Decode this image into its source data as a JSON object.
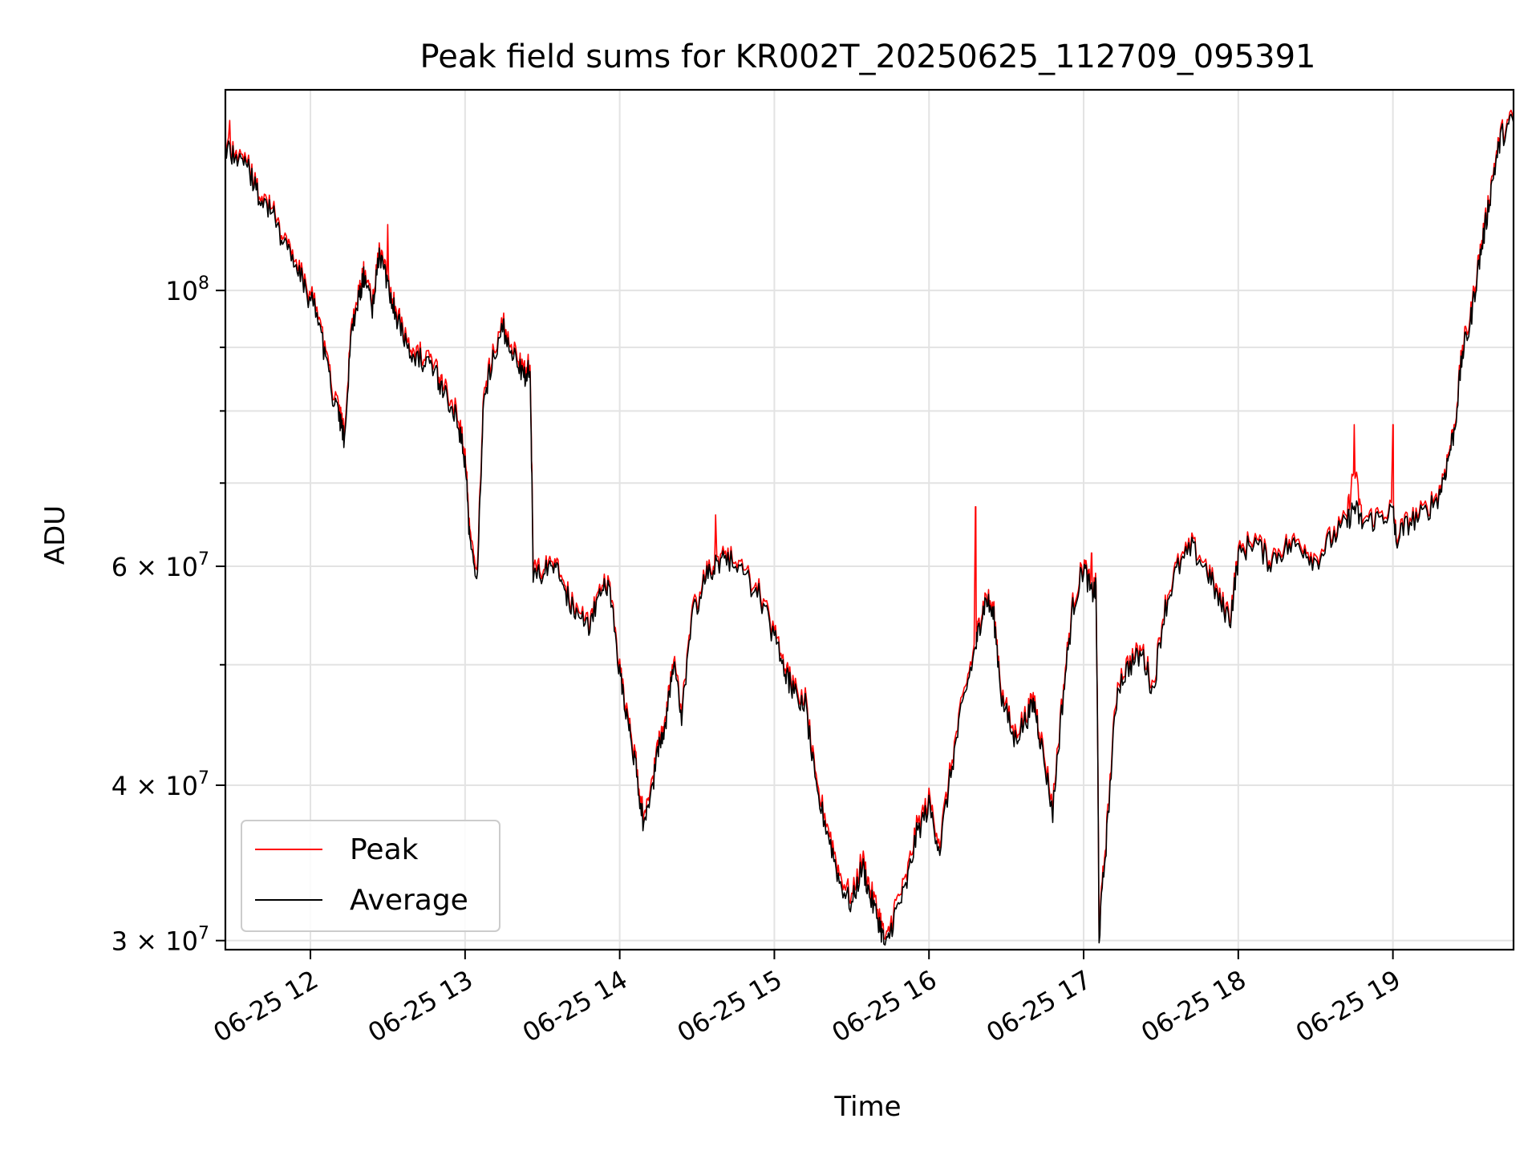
{
  "chart_data": {
    "type": "line",
    "title": "Peak field sums for KR002T_20250625_112709_095391",
    "xlabel": "Time",
    "ylabel": "ADU",
    "x_tick_labels": [
      "06-25 12",
      "06-25 13",
      "06-25 14",
      "06-25 15",
      "06-25 16",
      "06-25 17",
      "06-25 18",
      "06-25 19"
    ],
    "x_ticks_hours": [
      12,
      13,
      14,
      15,
      16,
      17,
      18,
      19
    ],
    "xlim_hours": [
      11.45,
      19.78
    ],
    "y_tick_labels": [
      {
        "value": 30000000,
        "base": "3 × 10",
        "exp": "7"
      },
      {
        "value": 40000000,
        "base": "4 × 10",
        "exp": "7"
      },
      {
        "value": 60000000,
        "base": "6 × 10",
        "exp": "7"
      },
      {
        "value": 100000000,
        "base": "10",
        "exp": "8"
      }
    ],
    "y_minor_ticks": [
      50000000,
      70000000,
      80000000,
      90000000
    ],
    "ylim": [
      29500000,
      145000000
    ],
    "yscale": "log",
    "grid": true,
    "legend": "lower-left",
    "x_unit_note": "x values are hours of 2025-06-25",
    "series": [
      {
        "name": "Peak",
        "color": "#ff0000",
        "x": [
          11.45,
          11.52,
          11.6,
          11.67,
          11.75,
          11.82,
          11.9,
          11.97,
          12.05,
          12.12,
          12.18,
          12.22,
          12.27,
          12.32,
          12.35,
          12.4,
          12.45,
          12.5,
          12.55,
          12.6,
          12.67,
          12.75,
          12.82,
          12.88,
          12.95,
          13.0,
          13.03,
          13.08,
          13.12,
          13.18,
          13.25,
          13.32,
          13.38,
          13.42,
          13.44,
          13.5,
          13.58,
          13.65,
          13.72,
          13.8,
          13.87,
          13.93,
          14.0,
          14.05,
          14.1,
          14.15,
          14.2,
          14.25,
          14.3,
          14.35,
          14.4,
          14.47,
          14.55,
          14.62,
          14.7,
          14.8,
          14.9,
          15.0,
          15.07,
          15.12,
          15.2,
          15.27,
          15.35,
          15.42,
          15.5,
          15.57,
          15.62,
          15.68,
          15.72,
          15.78,
          15.85,
          15.92,
          16.0,
          16.07,
          16.15,
          16.22,
          16.3,
          16.33,
          16.37,
          16.42,
          16.47,
          16.55,
          16.62,
          16.68,
          16.72,
          16.8,
          16.87,
          16.93,
          17.0,
          17.05,
          17.08,
          17.1,
          17.15,
          17.22,
          17.3,
          17.38,
          17.45,
          17.52,
          17.6,
          17.7,
          17.8,
          17.88,
          17.95,
          18.0,
          18.1,
          18.2,
          18.3,
          18.4,
          18.5,
          18.6,
          18.7,
          18.75,
          18.8,
          18.9,
          19.0,
          19.02,
          19.1,
          19.2,
          19.3,
          19.35,
          19.4,
          19.45,
          19.5,
          19.55,
          19.6,
          19.65,
          19.7,
          19.78
        ],
        "values": [
          132000000,
          129000000,
          126000000,
          120000000,
          117000000,
          111000000,
          106000000,
          101000000,
          96000000,
          86000000,
          80000000,
          77000000,
          95000000,
          100000000,
          104000000,
          98000000,
          108000000,
          102000000,
          97000000,
          93000000,
          90000000,
          88000000,
          86000000,
          83000000,
          80000000,
          74000000,
          64000000,
          60000000,
          82000000,
          90000000,
          94000000,
          89000000,
          86000000,
          88000000,
          60000000,
          59500000,
          61000000,
          57500000,
          55500000,
          54000000,
          57500000,
          58500000,
          49500000,
          46000000,
          42000000,
          38000000,
          39500000,
          43500000,
          45500000,
          51000000,
          45500000,
          55000000,
          59000000,
          60500000,
          61500000,
          59500000,
          57500000,
          53000000,
          50000000,
          48000000,
          47000000,
          40000000,
          37000000,
          34000000,
          32500000,
          35000000,
          33000000,
          31500000,
          29800000,
          32000000,
          33500000,
          37000000,
          39000000,
          36000000,
          42000000,
          47000000,
          52000000,
          54500000,
          57000000,
          55000000,
          47500000,
          44000000,
          45500000,
          47000000,
          44000000,
          38500000,
          48000000,
          56000000,
          60500000,
          57500000,
          58000000,
          30500000,
          37000000,
          48500000,
          50500000,
          51500000,
          48000000,
          55500000,
          60000000,
          62500000,
          60000000,
          56500000,
          55000000,
          61500000,
          63500000,
          61000000,
          62500000,
          63000000,
          61000000,
          63500000,
          65500000,
          72000000,
          65500000,
          66000000,
          67000000,
          63500000,
          65500000,
          66500000,
          69000000,
          73000000,
          78000000,
          90000000,
          95000000,
          105000000,
          114000000,
          125000000,
          134000000,
          138000000
        ],
        "spikes": [
          {
            "x": 11.48,
            "value": 137000000
          },
          {
            "x": 12.5,
            "value": 113000000
          },
          {
            "x": 14.62,
            "value": 66000000
          },
          {
            "x": 16.3,
            "value": 67000000
          },
          {
            "x": 17.05,
            "value": 61500000
          },
          {
            "x": 18.75,
            "value": 78000000
          },
          {
            "x": 19.0,
            "value": 78000000
          }
        ]
      },
      {
        "name": "Average",
        "color": "#000000",
        "x": [
          11.45,
          11.52,
          11.6,
          11.67,
          11.75,
          11.82,
          11.9,
          11.97,
          12.05,
          12.12,
          12.18,
          12.22,
          12.27,
          12.32,
          12.35,
          12.4,
          12.45,
          12.5,
          12.55,
          12.6,
          12.67,
          12.75,
          12.82,
          12.88,
          12.95,
          13.0,
          13.03,
          13.08,
          13.12,
          13.18,
          13.25,
          13.32,
          13.38,
          13.42,
          13.44,
          13.5,
          13.58,
          13.65,
          13.72,
          13.8,
          13.87,
          13.93,
          14.0,
          14.05,
          14.1,
          14.15,
          14.2,
          14.25,
          14.3,
          14.35,
          14.4,
          14.47,
          14.55,
          14.62,
          14.7,
          14.8,
          14.9,
          15.0,
          15.07,
          15.12,
          15.2,
          15.27,
          15.35,
          15.42,
          15.5,
          15.57,
          15.62,
          15.68,
          15.72,
          15.78,
          15.85,
          15.92,
          16.0,
          16.07,
          16.15,
          16.22,
          16.3,
          16.33,
          16.37,
          16.42,
          16.47,
          16.55,
          16.62,
          16.68,
          16.72,
          16.8,
          16.87,
          16.93,
          17.0,
          17.05,
          17.08,
          17.1,
          17.15,
          17.22,
          17.3,
          17.38,
          17.45,
          17.52,
          17.6,
          17.7,
          17.8,
          17.88,
          17.95,
          18.0,
          18.1,
          18.2,
          18.3,
          18.4,
          18.5,
          18.6,
          18.7,
          18.75,
          18.8,
          18.9,
          19.0,
          19.02,
          19.1,
          19.2,
          19.3,
          19.35,
          19.4,
          19.45,
          19.5,
          19.55,
          19.6,
          19.65,
          19.7,
          19.78
        ],
        "values": [
          131000000,
          128000000,
          125000000,
          119000000,
          116000000,
          110000000,
          105000000,
          100000000,
          95000000,
          85000000,
          79000000,
          76000000,
          94000000,
          99000000,
          103000000,
          97000000,
          107000000,
          101000000,
          96000000,
          92000000,
          89000000,
          87000000,
          85000000,
          82000000,
          79000000,
          73000000,
          63000000,
          59000000,
          81000000,
          89000000,
          93000000,
          88000000,
          85000000,
          87000000,
          59000000,
          59000000,
          60500000,
          57000000,
          55000000,
          53500000,
          57000000,
          58000000,
          49000000,
          45500000,
          41500000,
          37500000,
          39000000,
          43000000,
          45000000,
          50500000,
          45000000,
          54500000,
          58500000,
          60000000,
          61000000,
          59000000,
          57000000,
          52500000,
          49500000,
          47500000,
          46500000,
          39500000,
          36500000,
          33500000,
          32000000,
          34500000,
          32500000,
          31000000,
          29500000,
          31500000,
          33000000,
          36500000,
          38500000,
          35500000,
          41500000,
          46500000,
          51500000,
          54000000,
          56500000,
          54500000,
          47000000,
          43500000,
          45000000,
          46500000,
          43500000,
          38000000,
          47500000,
          55500000,
          60000000,
          57000000,
          57500000,
          30200000,
          36500000,
          48000000,
          50000000,
          51000000,
          47500000,
          55000000,
          59500000,
          62000000,
          59500000,
          56000000,
          54500000,
          61000000,
          63000000,
          60500000,
          62000000,
          62500000,
          60500000,
          63000000,
          65000000,
          67000000,
          65000000,
          65500000,
          66500000,
          63000000,
          65000000,
          66000000,
          68500000,
          72500000,
          77500000,
          89000000,
          94000000,
          104000000,
          113000000,
          124000000,
          133000000,
          137000000
        ]
      }
    ]
  }
}
